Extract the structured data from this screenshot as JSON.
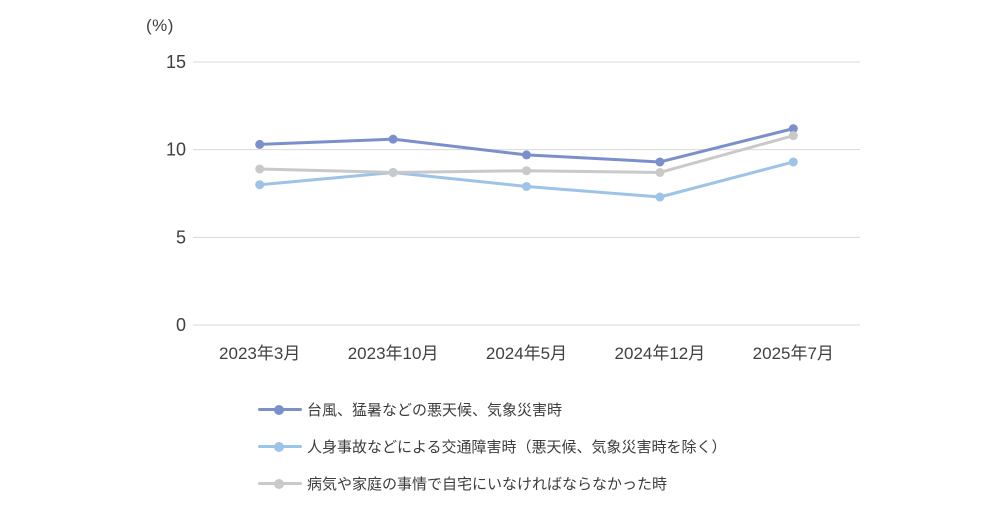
{
  "chart_data": {
    "type": "line",
    "y_axis_title": "(%)",
    "categories": [
      "2023年3月",
      "2023年10月",
      "2024年5月",
      "2024年12月",
      "2025年7月"
    ],
    "series": [
      {
        "name": "台風、猛暑などの悪天候、気象災害時",
        "color": "#7B90CB",
        "values": [
          10.3,
          10.6,
          9.7,
          9.3,
          11.2
        ]
      },
      {
        "name": "人身事故などによる交通障害時（悪天候、気象災害時を除く）",
        "color": "#9DC3E6",
        "values": [
          8.0,
          8.7,
          7.9,
          7.3,
          9.3
        ]
      },
      {
        "name": "病気や家庭の事情で自宅にいなければならなかった時",
        "color": "#C9C9C9",
        "values": [
          8.9,
          8.7,
          8.8,
          8.7,
          10.8
        ]
      }
    ],
    "y_ticks": [
      0,
      5,
      10,
      15
    ],
    "ylim": [
      0,
      15
    ],
    "grid": true,
    "gridline_color": "#D9D9D9",
    "tick_label_color": "#404040",
    "legend_position": "bottom-left"
  }
}
